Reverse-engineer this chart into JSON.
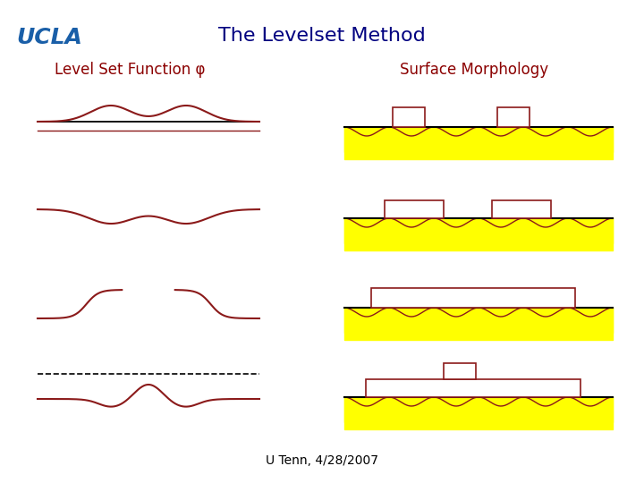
{
  "title": "The Levelset Method",
  "title_color": "#000080",
  "title_fontsize": 16,
  "ucla_text": "UCLA",
  "ucla_color": "#1a5fa8",
  "ucla_fontsize": 18,
  "left_label": "Level Set Function φ",
  "right_label": "Surface Morphology",
  "label_color": "#8b0000",
  "label_fontsize": 12,
  "footer": "U Tenn, 4/28/2007",
  "footer_color": "#000000",
  "footer_fontsize": 10,
  "bg_color": "#ffffff",
  "line_color": "#8b1a1a",
  "zero_line_color": "#000000",
  "yellow_color": "#ffff00",
  "wave_color": "#8b1a1a"
}
